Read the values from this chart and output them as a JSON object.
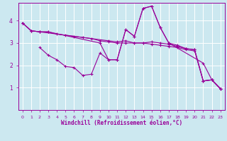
{
  "bg_color": "#cce8f0",
  "line_color": "#990099",
  "grid_color": "#ffffff",
  "xlabel": "Windchill (Refroidissement éolien,°C)",
  "xlim": [
    -0.5,
    23.5
  ],
  "ylim": [
    0,
    4.8
  ],
  "yticks": [
    1,
    2,
    3,
    4
  ],
  "xticks": [
    0,
    1,
    2,
    3,
    4,
    5,
    6,
    7,
    8,
    9,
    10,
    11,
    12,
    13,
    14,
    15,
    16,
    17,
    18,
    19,
    20,
    21,
    22,
    23
  ],
  "lines": [
    [
      [
        0,
        3.9
      ],
      [
        1,
        3.55
      ],
      [
        2,
        3.5
      ],
      [
        3,
        3.5
      ],
      [
        9,
        3.0
      ],
      [
        10,
        2.25
      ],
      [
        11,
        2.25
      ],
      [
        12,
        3.6
      ],
      [
        13,
        3.3
      ],
      [
        14,
        4.55
      ],
      [
        15,
        4.65
      ],
      [
        16,
        3.7
      ],
      [
        17,
        3.0
      ],
      [
        18,
        2.9
      ],
      [
        19,
        2.75
      ],
      [
        20,
        2.7
      ],
      [
        21,
        1.3
      ],
      [
        22,
        1.35
      ],
      [
        23,
        0.95
      ]
    ],
    [
      [
        0,
        3.9
      ],
      [
        1,
        3.55
      ],
      [
        2,
        3.5
      ],
      [
        10,
        3.1
      ],
      [
        11,
        3.05
      ],
      [
        12,
        3.1
      ],
      [
        13,
        3.0
      ],
      [
        14,
        3.0
      ],
      [
        15,
        3.05
      ],
      [
        16,
        3.0
      ],
      [
        17,
        2.95
      ],
      [
        18,
        2.85
      ],
      [
        19,
        2.75
      ],
      [
        20,
        2.7
      ],
      [
        21,
        1.3
      ],
      [
        22,
        1.35
      ],
      [
        23,
        0.95
      ]
    ],
    [
      [
        2,
        2.8
      ],
      [
        3,
        2.45
      ],
      [
        4,
        2.25
      ],
      [
        5,
        1.95
      ],
      [
        6,
        1.9
      ],
      [
        7,
        1.55
      ],
      [
        8,
        1.6
      ],
      [
        9,
        2.55
      ],
      [
        10,
        2.25
      ],
      [
        11,
        2.25
      ],
      [
        12,
        3.6
      ],
      [
        13,
        3.3
      ],
      [
        14,
        4.55
      ],
      [
        15,
        4.65
      ],
      [
        16,
        3.7
      ],
      [
        17,
        3.0
      ],
      [
        21,
        2.1
      ],
      [
        22,
        1.35
      ],
      [
        23,
        0.95
      ]
    ],
    [
      [
        0,
        3.9
      ],
      [
        1,
        3.55
      ],
      [
        2,
        3.5
      ],
      [
        3,
        3.5
      ],
      [
        4,
        3.4
      ],
      [
        5,
        3.35
      ],
      [
        6,
        3.3
      ],
      [
        7,
        3.25
      ],
      [
        8,
        3.2
      ],
      [
        9,
        3.1
      ],
      [
        10,
        3.05
      ],
      [
        11,
        3.0
      ],
      [
        12,
        3.0
      ],
      [
        13,
        3.0
      ],
      [
        14,
        3.0
      ],
      [
        15,
        2.95
      ],
      [
        16,
        2.9
      ],
      [
        17,
        2.85
      ],
      [
        18,
        2.8
      ],
      [
        19,
        2.7
      ],
      [
        20,
        2.65
      ],
      [
        21,
        1.3
      ],
      [
        22,
        1.35
      ],
      [
        23,
        0.95
      ]
    ]
  ]
}
